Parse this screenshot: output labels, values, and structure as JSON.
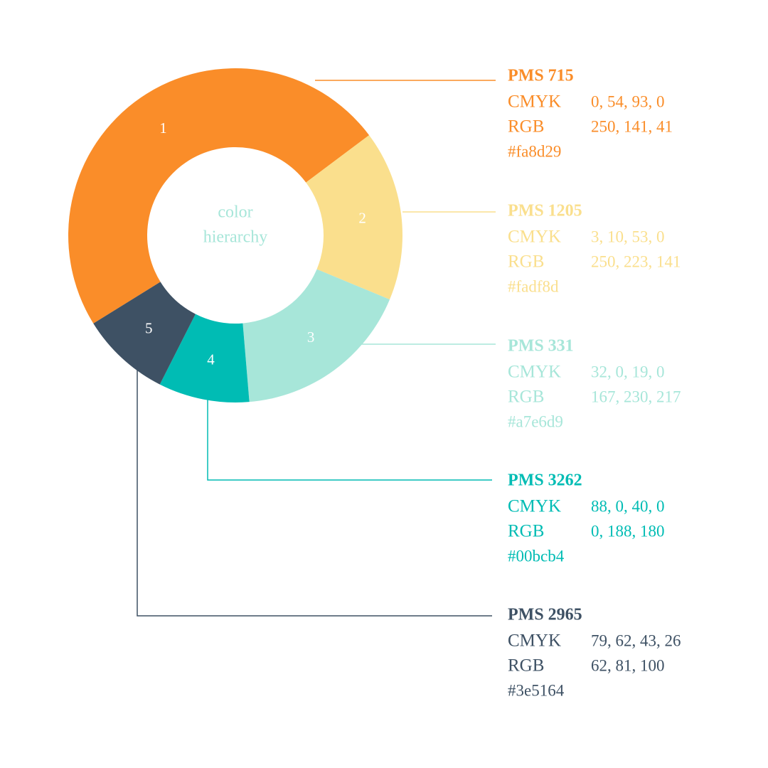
{
  "chart_data": {
    "type": "donut",
    "categories": [
      "1",
      "2",
      "3",
      "4",
      "5"
    ],
    "values": [
      48.6,
      16.5,
      17.4,
      8.8,
      8.7
    ],
    "colors": [
      "#fa8d29",
      "#fadf8d",
      "#a7e6d9",
      "#00bcb4",
      "#3e5164"
    ],
    "center_text": [
      "color",
      "hierarchy"
    ]
  },
  "swatches": [
    {
      "name": "PMS 715",
      "cmyk_label": "CMYK",
      "cmyk": "0, 54, 93, 0",
      "rgb_label": "RGB",
      "rgb": "250, 141, 41",
      "hex": "#fa8d29"
    },
    {
      "name": "PMS 1205",
      "cmyk_label": "CMYK",
      "cmyk": "3, 10, 53, 0",
      "rgb_label": "RGB",
      "rgb": "250, 223, 141",
      "hex": "#fadf8d"
    },
    {
      "name": "PMS 331",
      "cmyk_label": "CMYK",
      "cmyk": "32, 0, 19, 0",
      "rgb_label": "RGB",
      "rgb": "167, 230, 217",
      "hex": "#a7e6d9"
    },
    {
      "name": "PMS 3262",
      "cmyk_label": "CMYK",
      "cmyk": "88, 0, 40, 0",
      "rgb_label": "RGB",
      "rgb": "0, 188, 180",
      "hex": "#00bcb4"
    },
    {
      "name": "PMS 2965",
      "cmyk_label": "CMYK",
      "cmyk": "79, 62, 43, 26",
      "rgb_label": "RGB",
      "rgb": "62, 81, 100",
      "hex": "#3e5164"
    }
  ]
}
